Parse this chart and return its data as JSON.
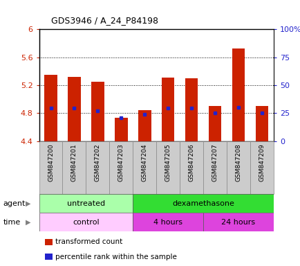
{
  "title": "GDS3946 / A_24_P84198",
  "samples": [
    "GSM847200",
    "GSM847201",
    "GSM847202",
    "GSM847203",
    "GSM847204",
    "GSM847205",
    "GSM847206",
    "GSM847207",
    "GSM847208",
    "GSM847209"
  ],
  "bar_values": [
    5.35,
    5.32,
    5.25,
    4.73,
    4.84,
    5.31,
    5.3,
    4.9,
    5.72,
    4.9
  ],
  "bar_bottom": 4.4,
  "blue_values": [
    4.87,
    4.87,
    4.83,
    4.73,
    4.78,
    4.87,
    4.87,
    4.8,
    4.88,
    4.8
  ],
  "bar_color": "#cc2200",
  "blue_color": "#2222cc",
  "ylim_left": [
    4.4,
    6.0
  ],
  "ylim_right": [
    0,
    100
  ],
  "yticks_left": [
    4.4,
    4.8,
    5.2,
    5.6,
    6.0
  ],
  "ytick_labels_left": [
    "4.4",
    "4.8",
    "5.2",
    "5.6",
    "6"
  ],
  "yticks_right": [
    0,
    25,
    50,
    75,
    100
  ],
  "ytick_labels_right": [
    "0",
    "25",
    "50",
    "75",
    "100%"
  ],
  "agent_groups": [
    {
      "label": "untreated",
      "start": 0,
      "end": 4,
      "color": "#aaffaa"
    },
    {
      "label": "dexamethasone",
      "start": 4,
      "end": 10,
      "color": "#33dd33"
    }
  ],
  "time_groups": [
    {
      "label": "control",
      "start": 0,
      "end": 4,
      "color": "#ffccff"
    },
    {
      "label": "4 hours",
      "start": 4,
      "end": 7,
      "color": "#dd44dd"
    },
    {
      "label": "24 hours",
      "start": 7,
      "end": 10,
      "color": "#dd44dd"
    }
  ],
  "legend_items": [
    {
      "label": "transformed count",
      "color": "#cc2200"
    },
    {
      "label": "percentile rank within the sample",
      "color": "#2222cc"
    }
  ],
  "bar_width": 0.55,
  "background_color": "#ffffff",
  "plot_bg": "#ffffff",
  "left_label_color": "#cc2200",
  "right_label_color": "#2222cc",
  "grid_dotted_at": [
    4.8,
    5.2,
    5.6
  ],
  "xtick_bg": "#cccccc"
}
